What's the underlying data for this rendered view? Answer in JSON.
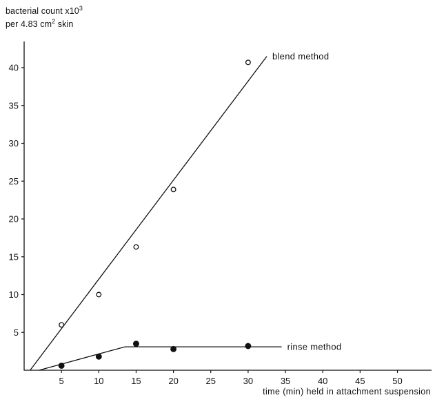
{
  "chart_data": {
    "type": "scatter",
    "ylabel_line1": "bacterial count x10",
    "ylabel_line1_sup": "3",
    "ylabel_line2_a": "per 4.83 cm",
    "ylabel_line2_sup": "2",
    "ylabel_line2_b": " skin",
    "xlabel": "time (min) held in attachment suspension",
    "xlim": [
      0,
      55
    ],
    "ylim": [
      0,
      43
    ],
    "x_ticks": [
      5,
      10,
      15,
      20,
      25,
      30,
      35,
      40,
      45,
      50
    ],
    "y_ticks": [
      5,
      10,
      15,
      20,
      25,
      30,
      35,
      40
    ],
    "grid": false,
    "series": [
      {
        "name": "blend method",
        "marker": "open-circle",
        "points": [
          {
            "x": 5,
            "y": 6.0
          },
          {
            "x": 10,
            "y": 10.0
          },
          {
            "x": 15,
            "y": 16.3
          },
          {
            "x": 20,
            "y": 23.9
          },
          {
            "x": 30,
            "y": 40.7
          }
        ],
        "fit_line": [
          {
            "x": 0.8,
            "y": 0
          },
          {
            "x": 32.5,
            "y": 41.5
          }
        ]
      },
      {
        "name": "rinse method",
        "marker": "filled-circle",
        "points": [
          {
            "x": 5,
            "y": 0.6
          },
          {
            "x": 10,
            "y": 1.8
          },
          {
            "x": 15,
            "y": 3.5
          },
          {
            "x": 20,
            "y": 2.8
          },
          {
            "x": 30,
            "y": 3.2
          }
        ],
        "fit_line": [
          {
            "x": 2,
            "y": 0
          },
          {
            "x": 13.5,
            "y": 3.1
          },
          {
            "x": 34.5,
            "y": 3.1
          }
        ]
      }
    ]
  }
}
